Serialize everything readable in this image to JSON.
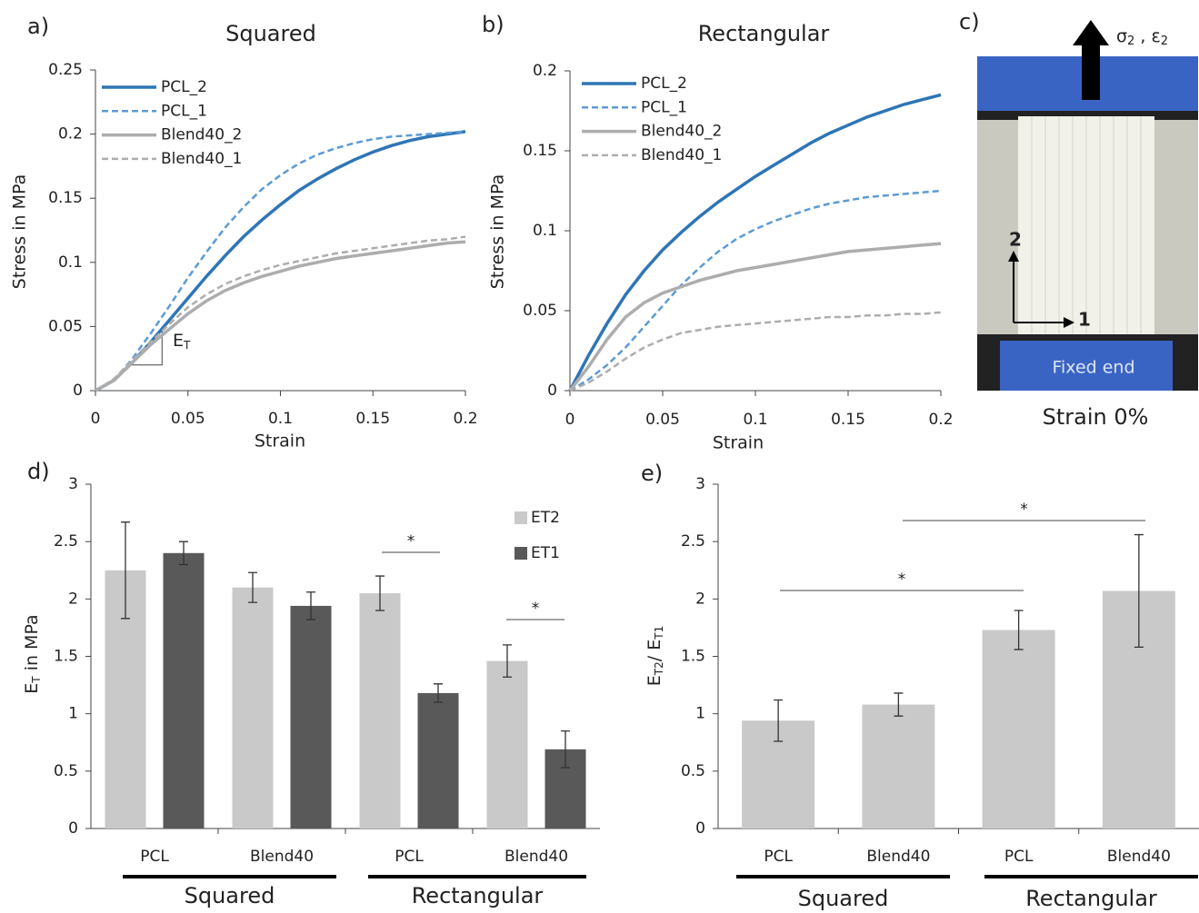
{
  "chart_data": [
    {
      "type": "line",
      "panel_label": "a)",
      "title": "Squared",
      "xlabel": "Strain",
      "ylabel": "Stress in MPa",
      "x": [
        0,
        0.01,
        0.02,
        0.03,
        0.04,
        0.05,
        0.06,
        0.07,
        0.08,
        0.09,
        0.1,
        0.11,
        0.12,
        0.13,
        0.14,
        0.15,
        0.16,
        0.17,
        0.18,
        0.19,
        0.2
      ],
      "xlim": [
        0,
        0.2
      ],
      "xticks": [
        0,
        0.05,
        0.1,
        0.15,
        0.2
      ],
      "ylim": [
        0,
        0.25
      ],
      "yticks": [
        0,
        0.05,
        0.1,
        0.15,
        0.2,
        0.25
      ],
      "legend": "upper left",
      "annotation": [
        "E",
        "T"
      ],
      "series": [
        {
          "name": "PCL_2",
          "color": "#2e75b6",
          "dashed": false,
          "values": [
            0,
            0.008,
            0.022,
            0.038,
            0.055,
            0.072,
            0.089,
            0.105,
            0.12,
            0.133,
            0.145,
            0.156,
            0.165,
            0.173,
            0.18,
            0.186,
            0.191,
            0.195,
            0.198,
            0.2,
            0.202
          ]
        },
        {
          "name": "PCL_1",
          "color": "#5b9bd5",
          "dashed": true,
          "values": [
            0,
            0.008,
            0.025,
            0.045,
            0.066,
            0.088,
            0.108,
            0.127,
            0.143,
            0.157,
            0.168,
            0.177,
            0.184,
            0.189,
            0.193,
            0.196,
            0.198,
            0.199,
            0.2,
            0.201,
            0.202
          ]
        },
        {
          "name": "Blend40_2",
          "color": "#adadad",
          "dashed": false,
          "values": [
            0,
            0.008,
            0.022,
            0.036,
            0.048,
            0.06,
            0.07,
            0.078,
            0.084,
            0.089,
            0.093,
            0.097,
            0.1,
            0.103,
            0.105,
            0.107,
            0.109,
            0.111,
            0.113,
            0.115,
            0.116
          ]
        },
        {
          "name": "Blend40_1",
          "color": "#adadad",
          "dashed": true,
          "values": [
            0,
            0.009,
            0.024,
            0.038,
            0.052,
            0.065,
            0.075,
            0.083,
            0.089,
            0.094,
            0.098,
            0.101,
            0.104,
            0.107,
            0.109,
            0.111,
            0.113,
            0.115,
            0.117,
            0.118,
            0.12
          ]
        }
      ]
    },
    {
      "type": "line",
      "panel_label": "b)",
      "title": "Rectangular",
      "xlabel": "Strain",
      "ylabel": "Stress in MPa",
      "x": [
        0,
        0.01,
        0.02,
        0.03,
        0.04,
        0.05,
        0.06,
        0.07,
        0.08,
        0.09,
        0.1,
        0.11,
        0.12,
        0.13,
        0.14,
        0.15,
        0.16,
        0.17,
        0.18,
        0.19,
        0.2
      ],
      "xlim": [
        0,
        0.2
      ],
      "xticks": [
        0,
        0.05,
        0.1,
        0.15,
        0.2
      ],
      "ylim": [
        0,
        0.2
      ],
      "yticks": [
        0,
        0.05,
        0.1,
        0.15,
        0.2
      ],
      "legend": "upper left",
      "series": [
        {
          "name": "PCL_2",
          "color": "#2e75b6",
          "dashed": false,
          "values": [
            0,
            0.022,
            0.042,
            0.06,
            0.075,
            0.088,
            0.099,
            0.109,
            0.118,
            0.126,
            0.134,
            0.141,
            0.148,
            0.155,
            0.161,
            0.166,
            0.171,
            0.175,
            0.179,
            0.182,
            0.185
          ]
        },
        {
          "name": "PCL_1",
          "color": "#5b9bd5",
          "dashed": true,
          "values": [
            0,
            0.007,
            0.016,
            0.027,
            0.04,
            0.053,
            0.066,
            0.077,
            0.087,
            0.095,
            0.101,
            0.106,
            0.11,
            0.114,
            0.117,
            0.119,
            0.121,
            0.122,
            0.123,
            0.124,
            0.125
          ]
        },
        {
          "name": "Blend40_2",
          "color": "#adadad",
          "dashed": false,
          "values": [
            0,
            0.015,
            0.032,
            0.046,
            0.055,
            0.061,
            0.065,
            0.069,
            0.072,
            0.075,
            0.077,
            0.079,
            0.081,
            0.083,
            0.085,
            0.087,
            0.088,
            0.089,
            0.09,
            0.091,
            0.092
          ]
        },
        {
          "name": "Blend40_1",
          "color": "#adadad",
          "dashed": true,
          "values": [
            0,
            0.005,
            0.012,
            0.02,
            0.027,
            0.032,
            0.036,
            0.038,
            0.04,
            0.041,
            0.042,
            0.043,
            0.044,
            0.045,
            0.046,
            0.046,
            0.047,
            0.047,
            0.048,
            0.048,
            0.049
          ]
        }
      ]
    },
    {
      "type": "bar",
      "panel_label": "d)",
      "ylabel": [
        "E",
        "T",
        " in MPa"
      ],
      "categories": [
        "PCL",
        "Blend40",
        "PCL",
        "Blend40"
      ],
      "groups": [
        "Squared",
        "Rectangular"
      ],
      "ylim": [
        0,
        3
      ],
      "yticks": [
        0,
        0.5,
        1,
        1.5,
        2,
        2.5,
        3
      ],
      "legend": "upper right",
      "annotations": [
        "*",
        "*"
      ],
      "series": [
        {
          "name": "ET2",
          "color": "#c9c9c9",
          "values": [
            2.25,
            2.1,
            2.05,
            1.46
          ],
          "errors": [
            0.42,
            0.13,
            0.15,
            0.14
          ]
        },
        {
          "name": "ET1",
          "color": "#595959",
          "values": [
            2.4,
            1.94,
            1.18,
            0.69
          ],
          "errors": [
            0.1,
            0.12,
            0.08,
            0.16
          ]
        }
      ]
    },
    {
      "type": "bar",
      "panel_label": "e)",
      "ylabel": [
        "E",
        "T2",
        "/ E",
        "T1"
      ],
      "categories": [
        "PCL",
        "Blend40",
        "PCL",
        "Blend40"
      ],
      "groups": [
        "Squared",
        "Rectangular"
      ],
      "ylim": [
        0,
        3
      ],
      "yticks": [
        0,
        0.5,
        1,
        1.5,
        2,
        2.5,
        3
      ],
      "annotations": [
        "*",
        "*"
      ],
      "series": [
        {
          "color": "#c9c9c9",
          "values": [
            0.94,
            1.08,
            1.73,
            2.07
          ],
          "errors": [
            0.18,
            0.1,
            0.17,
            0.49
          ]
        }
      ]
    }
  ],
  "photo_panel": {
    "panel_label": "c)",
    "force_label": [
      "σ",
      "2",
      " , ε",
      "2"
    ],
    "axis_2": "2",
    "axis_1": "1",
    "fixed_label": "Fixed end",
    "caption": "Strain 0%"
  }
}
